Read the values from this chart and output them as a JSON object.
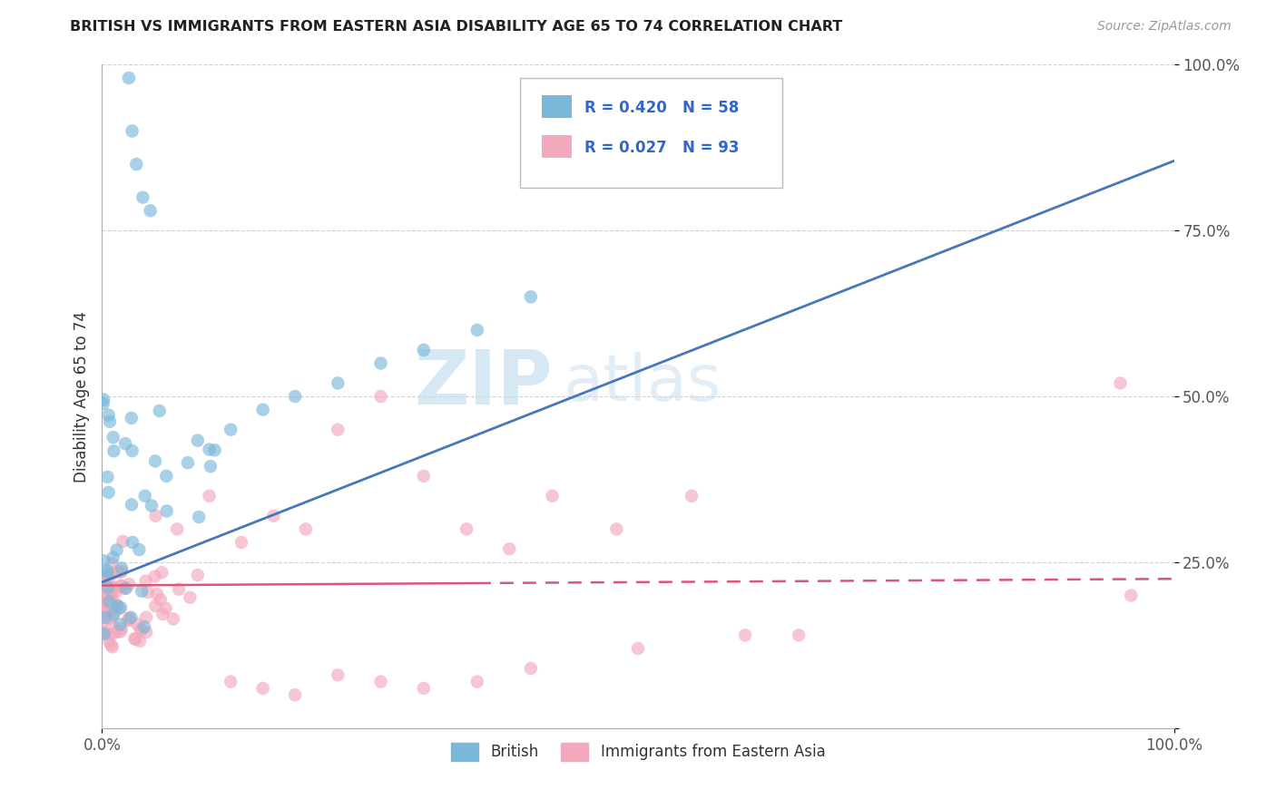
{
  "title": "BRITISH VS IMMIGRANTS FROM EASTERN ASIA DISABILITY AGE 65 TO 74 CORRELATION CHART",
  "source": "Source: ZipAtlas.com",
  "ylabel": "Disability Age 65 to 74",
  "legend_label1": "British",
  "legend_label2": "Immigrants from Eastern Asia",
  "r1": 0.42,
  "n1": 58,
  "r2": 0.027,
  "n2": 93,
  "blue_color": "#7ab8d9",
  "pink_color": "#f4a8bc",
  "line_blue": "#4477bb",
  "line_pink": "#dd5577",
  "watermark_zip_color": "#c5dff0",
  "watermark_atlas_color": "#c5dff0",
  "grid_color": "#cccccc",
  "spine_color": "#aaaaaa",
  "tick_color": "#555555",
  "title_color": "#222222",
  "source_color": "#999999"
}
